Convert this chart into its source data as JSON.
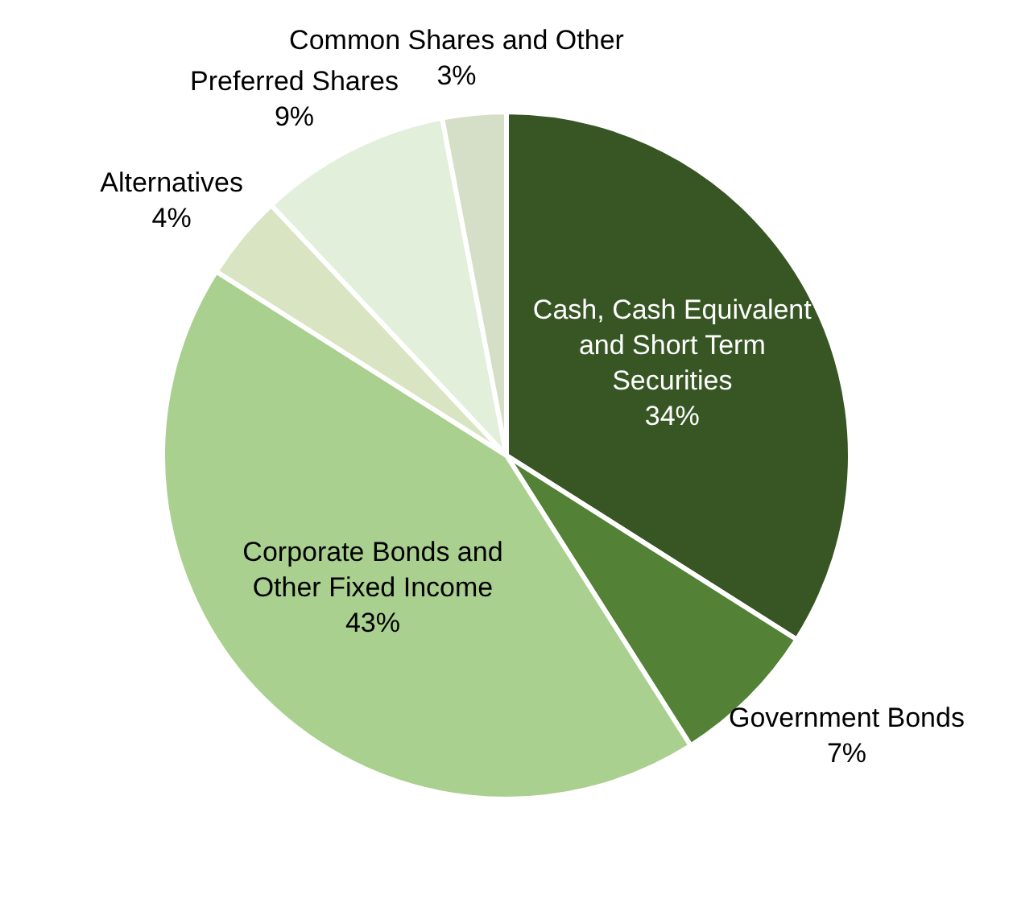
{
  "chart_data": {
    "type": "pie",
    "categories": [
      "Cash, Cash Equivalent and Short Term Securities",
      "Government Bonds",
      "Corporate Bonds and Other Fixed Income",
      "Alternatives",
      "Preferred Shares",
      "Common Shares and Other"
    ],
    "values": [
      34,
      7,
      43,
      4,
      9,
      3
    ],
    "value_labels": [
      "34%",
      "7%",
      "43%",
      "4%",
      "9%",
      "3%"
    ],
    "colors": [
      "#375623",
      "#538135",
      "#a9d08e",
      "#d9e4c2",
      "#e2efda",
      "#d5dec6"
    ],
    "legend": false
  }
}
